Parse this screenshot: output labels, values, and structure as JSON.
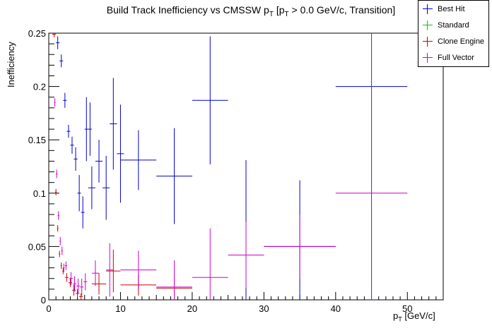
{
  "chart_data": {
    "type": "scatter",
    "title_main": "Build Track Inefficiency vs CMSSW p",
    "title_sub_t": "T",
    "title_bracket": " [p",
    "title_sub_t2": "T",
    "title_rest": " > 0.0 GeV/c, Transition]",
    "ylabel": "Inefficiency",
    "xlabel_main": "p",
    "xlabel_sub": "T",
    "xlabel_unit": " [GeV/c]",
    "xlim": [
      0,
      55
    ],
    "ylim": [
      0,
      0.25
    ],
    "x_ticks": [
      "0",
      "10",
      "20",
      "30",
      "40",
      "50"
    ],
    "y_ticks": [
      "0",
      "0.05",
      "0.1",
      "0.15",
      "0.2",
      "0.25"
    ],
    "legend_position": "top-right",
    "series": [
      {
        "name": "Best Hit",
        "color": "#0000cc",
        "points": [
          {
            "x": 1.25,
            "xerr": 0.25,
            "y": 0.241,
            "yerr": 0.006
          },
          {
            "x": 1.75,
            "xerr": 0.25,
            "y": 0.224,
            "yerr": 0.006
          },
          {
            "x": 2.25,
            "xerr": 0.25,
            "y": 0.187,
            "yerr": 0.007
          },
          {
            "x": 2.75,
            "xerr": 0.25,
            "y": 0.158,
            "yerr": 0.006
          },
          {
            "x": 3.25,
            "xerr": 0.25,
            "y": 0.145,
            "yerr": 0.008
          },
          {
            "x": 3.75,
            "xerr": 0.25,
            "y": 0.132,
            "yerr": 0.011
          },
          {
            "x": 4.25,
            "xerr": 0.25,
            "y": 0.1,
            "yerr": 0.017
          },
          {
            "x": 4.75,
            "xerr": 0.25,
            "y": 0.082,
            "yerr": 0.015
          },
          {
            "x": 5.25,
            "xerr": 0.25,
            "y": 0.16,
            "yerr": 0.03
          },
          {
            "x": 5.75,
            "xerr": 0.25,
            "y": 0.16,
            "yerr": 0.025
          },
          {
            "x": 6.0,
            "xerr": 0.5,
            "y": 0.105,
            "yerr": 0.02
          },
          {
            "x": 7.0,
            "xerr": 0.5,
            "y": 0.13,
            "yerr": 0.02
          },
          {
            "x": 8.0,
            "xerr": 0.5,
            "y": 0.105,
            "yerr": 0.03
          },
          {
            "x": 9.0,
            "xerr": 0.5,
            "y": 0.165,
            "yerr": 0.043
          },
          {
            "x": 10.0,
            "xerr": 0.5,
            "y": 0.137,
            "yerr": 0.046
          },
          {
            "x": 12.5,
            "xerr": 2.5,
            "y": 0.131,
            "yerr": 0.028
          },
          {
            "x": 17.5,
            "xerr": 2.5,
            "y": 0.116,
            "yerr": 0.045
          },
          {
            "x": 22.5,
            "xerr": 2.5,
            "y": 0.187,
            "yerr": 0.06
          },
          {
            "x": 27.5,
            "xerr": 2.5,
            "y": 0.042,
            "yerr": 0.089
          },
          {
            "x": 35.0,
            "xerr": 5.0,
            "y": 0.05,
            "yerr": 0.062
          },
          {
            "x": 45.0,
            "xerr": 5.0,
            "y": 0.2,
            "yerr": 0.2
          }
        ]
      },
      {
        "name": "Standard",
        "color": "#00cc00",
        "points": []
      },
      {
        "name": "Clone Engine",
        "color": "#cc0000",
        "points": [
          {
            "x": 0.75,
            "xerr": 0.25,
            "y": 0.249,
            "yerr": 0.003
          },
          {
            "x": 1.0,
            "xerr": 0.1,
            "y": 0.101,
            "yerr": 0.003
          },
          {
            "x": 1.25,
            "xerr": 0.1,
            "y": 0.067,
            "yerr": 0.003
          },
          {
            "x": 1.5,
            "xerr": 0.1,
            "y": 0.043,
            "yerr": 0.003
          },
          {
            "x": 1.75,
            "xerr": 0.1,
            "y": 0.032,
            "yerr": 0.003
          },
          {
            "x": 2.0,
            "xerr": 0.1,
            "y": 0.027,
            "yerr": 0.003
          },
          {
            "x": 2.5,
            "xerr": 0.25,
            "y": 0.021,
            "yerr": 0.004
          },
          {
            "x": 3.0,
            "xerr": 0.25,
            "y": 0.016,
            "yerr": 0.004
          },
          {
            "x": 3.5,
            "xerr": 0.25,
            "y": 0.009,
            "yerr": 0.005
          },
          {
            "x": 4.0,
            "xerr": 0.25,
            "y": 0.006,
            "yerr": 0.004
          },
          {
            "x": 4.5,
            "xerr": 0.25,
            "y": 0.003,
            "yerr": 0.003
          },
          {
            "x": 7.0,
            "xerr": 1.0,
            "y": 0.015,
            "yerr": 0.01
          },
          {
            "x": 9.0,
            "xerr": 1.0,
            "y": 0.027,
            "yerr": 0.02
          },
          {
            "x": 12.5,
            "xerr": 2.5,
            "y": 0.014,
            "yerr": 0.01
          },
          {
            "x": 17.5,
            "xerr": 2.5,
            "y": 0.011,
            "yerr": 0.011
          }
        ]
      },
      {
        "name": "Full Vector",
        "color": "#cc00cc",
        "points": [
          {
            "x": 0.85,
            "xerr": 0.1,
            "y": 0.185,
            "yerr": 0.004
          },
          {
            "x": 1.1,
            "xerr": 0.1,
            "y": 0.118,
            "yerr": 0.004
          },
          {
            "x": 1.35,
            "xerr": 0.1,
            "y": 0.079,
            "yerr": 0.004
          },
          {
            "x": 1.6,
            "xerr": 0.1,
            "y": 0.055,
            "yerr": 0.004
          },
          {
            "x": 1.85,
            "xerr": 0.1,
            "y": 0.046,
            "yerr": 0.004
          },
          {
            "x": 2.1,
            "xerr": 0.1,
            "y": 0.03,
            "yerr": 0.004
          },
          {
            "x": 2.4,
            "xerr": 0.15,
            "y": 0.032,
            "yerr": 0.004
          },
          {
            "x": 3.1,
            "xerr": 0.25,
            "y": 0.02,
            "yerr": 0.006
          },
          {
            "x": 3.6,
            "xerr": 0.25,
            "y": 0.015,
            "yerr": 0.007
          },
          {
            "x": 4.1,
            "xerr": 0.25,
            "y": 0.013,
            "yerr": 0.007
          },
          {
            "x": 4.6,
            "xerr": 0.25,
            "y": 0.012,
            "yerr": 0.008
          },
          {
            "x": 5.1,
            "xerr": 0.25,
            "y": 0.017,
            "yerr": 0.008
          },
          {
            "x": 6.5,
            "xerr": 0.5,
            "y": 0.025,
            "yerr": 0.012
          },
          {
            "x": 8.5,
            "xerr": 0.5,
            "y": 0.028,
            "yerr": 0.025
          },
          {
            "x": 12.5,
            "xerr": 2.5,
            "y": 0.028,
            "yerr": 0.018
          },
          {
            "x": 17.5,
            "xerr": 2.5,
            "y": 0.012,
            "yerr": 0.025
          },
          {
            "x": 22.5,
            "xerr": 2.5,
            "y": 0.021,
            "yerr": 0.046
          },
          {
            "x": 27.5,
            "xerr": 2.5,
            "y": 0.042,
            "yerr": 0.031
          },
          {
            "x": 35.0,
            "xerr": 5.0,
            "y": 0.05,
            "yerr": 0.03
          },
          {
            "x": 45.0,
            "xerr": 5.0,
            "y": 0.1,
            "yerr": 0.15
          }
        ]
      }
    ]
  }
}
